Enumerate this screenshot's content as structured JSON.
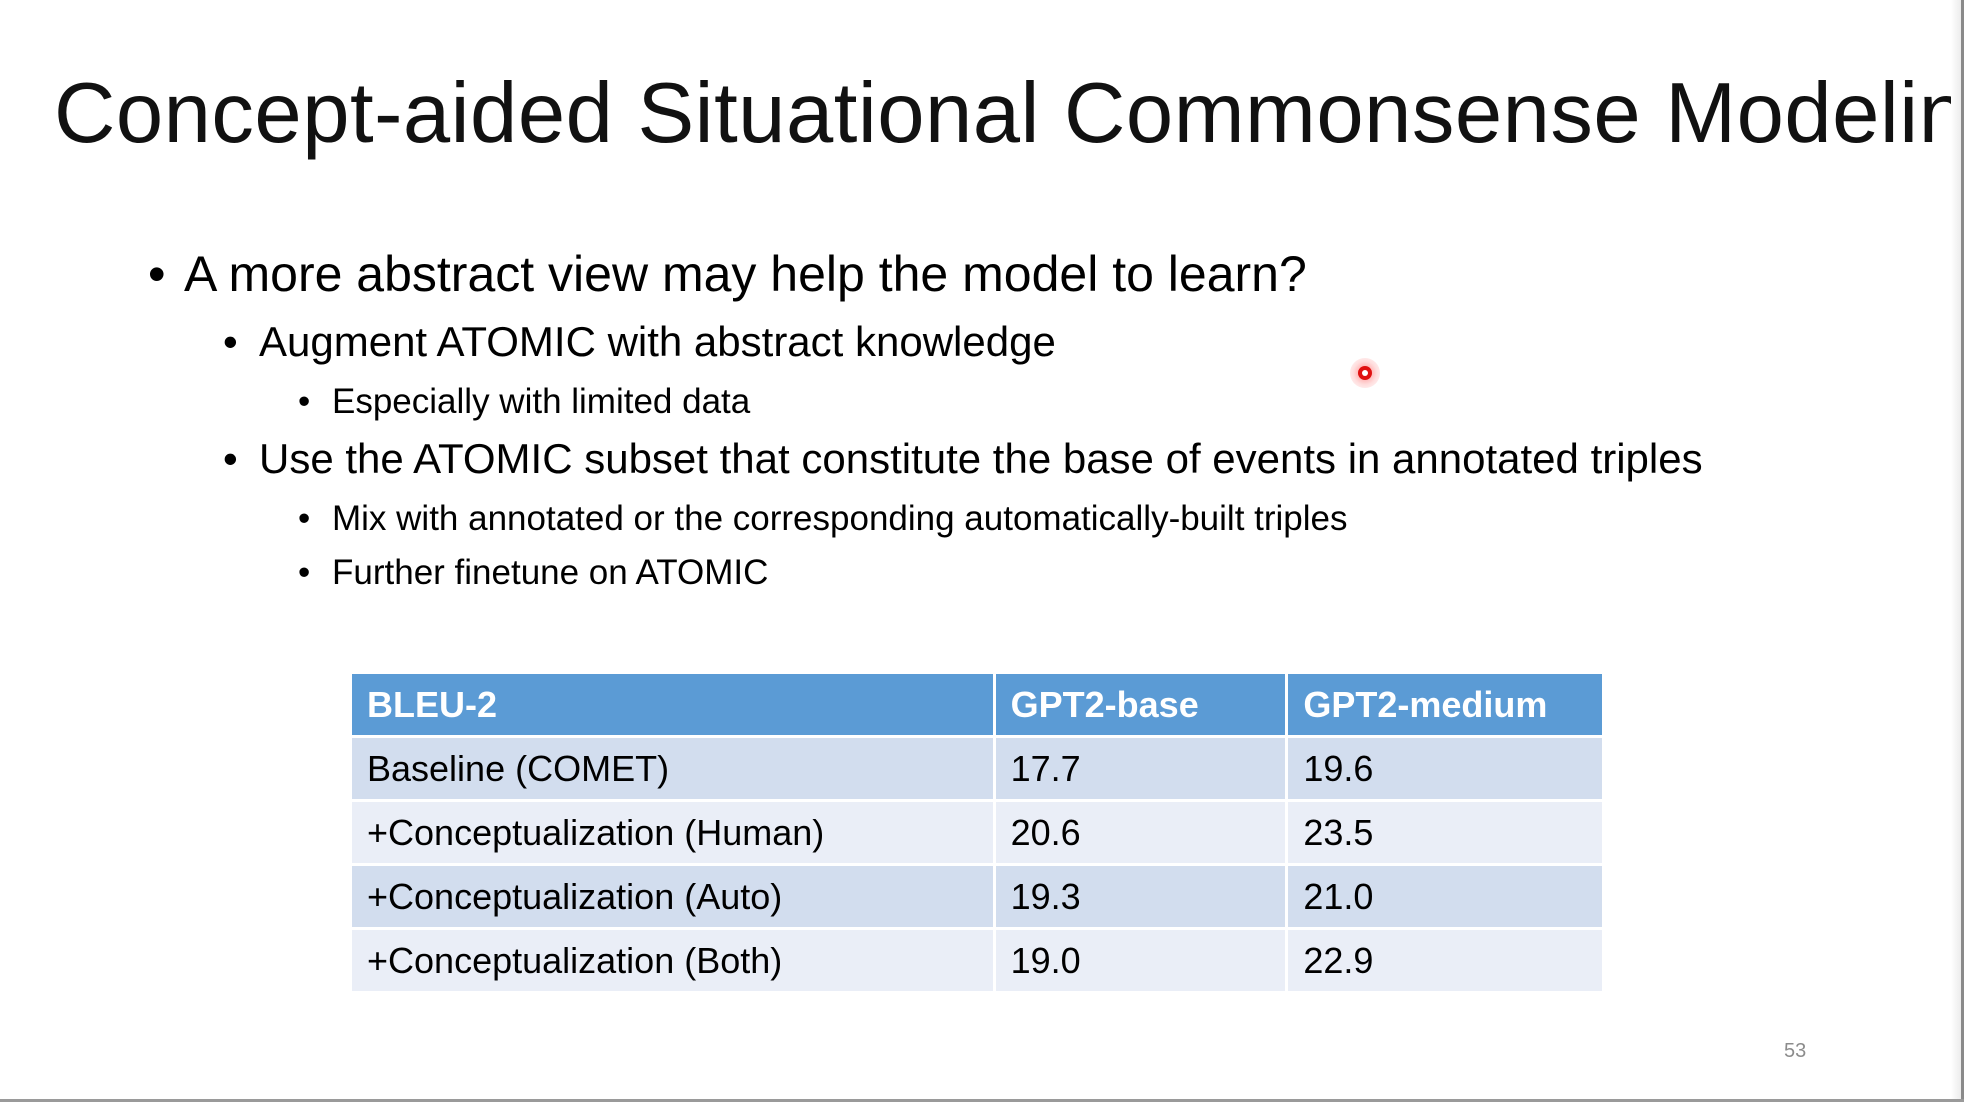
{
  "slide": {
    "title": "Concept-aided Situational Commonsense Modeling",
    "bullet_glyph": "•",
    "bullets": [
      {
        "level": 1,
        "text": "A more abstract view may help the model to learn?"
      },
      {
        "level": 2,
        "text": "Augment ATOMIC with abstract knowledge"
      },
      {
        "level": 3,
        "text": "Especially with limited data"
      },
      {
        "level": 2,
        "text": "Use the ATOMIC subset that constitute the base of events in annotated triples"
      },
      {
        "level": 3,
        "text": "Mix with annotated or the corresponding automatically-built triples"
      },
      {
        "level": 3,
        "text": "Further finetune on ATOMIC"
      }
    ],
    "table": {
      "headers": [
        "BLEU-2",
        "GPT2-base",
        "GPT2-medium"
      ],
      "rows": [
        [
          "Baseline (COMET)",
          "17.7",
          "19.6"
        ],
        [
          "+Conceptualization (Human)",
          "20.6",
          "23.5"
        ],
        [
          "+Conceptualization (Auto)",
          "19.3",
          "21.0"
        ],
        [
          "+Conceptualization (Both)",
          "19.0",
          "22.9"
        ]
      ]
    },
    "page_number": "53"
  },
  "colors": {
    "header_fill": "#5b9bd5",
    "row_fill_dark": "#d2ddee",
    "row_fill_light": "#eaeef7",
    "laser_pointer": "#e01010"
  },
  "icons": {
    "cursor": "laser-pointer-icon"
  }
}
